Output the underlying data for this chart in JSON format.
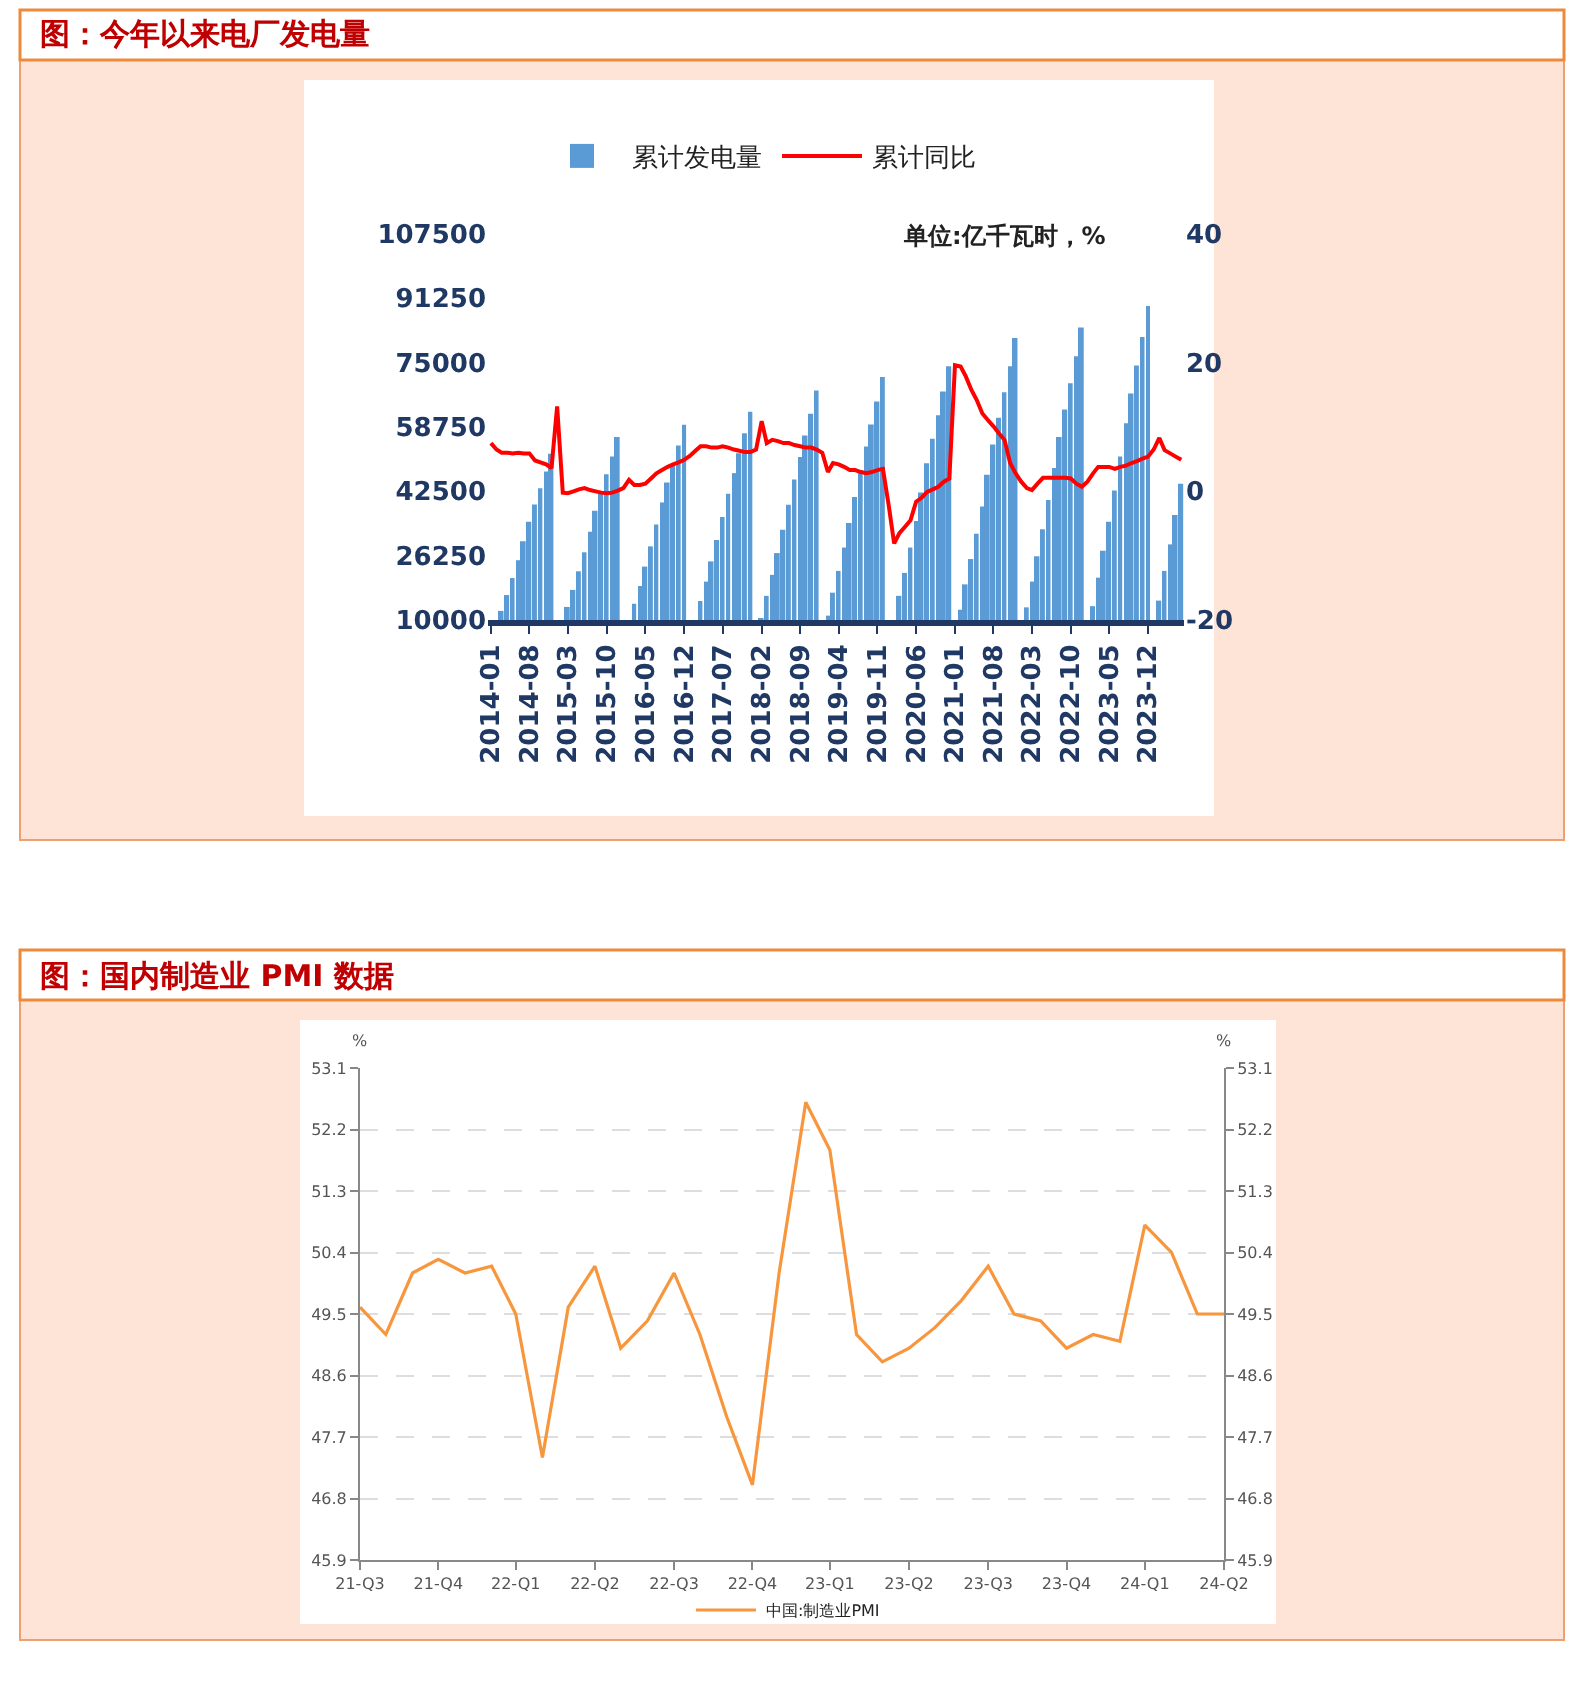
{
  "chart_data": [
    {
      "type": "bar",
      "title": "图：今年以来电厂发电量",
      "annotations": [
        "单位:亿千瓦时，%"
      ],
      "legend": "top",
      "x": [
        "2014-01",
        "2014-02",
        "2014-03",
        "2014-04",
        "2014-05",
        "2014-06",
        "2014-07",
        "2014-08",
        "2014-09",
        "2014-10",
        "2014-11",
        "2014-12",
        "2015-01",
        "2015-02",
        "2015-03",
        "2015-04",
        "2015-05",
        "2015-06",
        "2015-07",
        "2015-08",
        "2015-09",
        "2015-10",
        "2015-11",
        "2015-12",
        "2016-01",
        "2016-02",
        "2016-03",
        "2016-04",
        "2016-05",
        "2016-06",
        "2016-07",
        "2016-08",
        "2016-09",
        "2016-10",
        "2016-11",
        "2016-12",
        "2017-01",
        "2017-02",
        "2017-03",
        "2017-04",
        "2017-05",
        "2017-06",
        "2017-07",
        "2017-08",
        "2017-09",
        "2017-10",
        "2017-11",
        "2017-12",
        "2018-01",
        "2018-02",
        "2018-03",
        "2018-04",
        "2018-05",
        "2018-06",
        "2018-07",
        "2018-08",
        "2018-09",
        "2018-10",
        "2018-11",
        "2018-12",
        "2019-01",
        "2019-02",
        "2019-03",
        "2019-04",
        "2019-05",
        "2019-06",
        "2019-07",
        "2019-08",
        "2019-09",
        "2019-10",
        "2019-11",
        "2019-12",
        "2020-01",
        "2020-02",
        "2020-03",
        "2020-04",
        "2020-05",
        "2020-06",
        "2020-07",
        "2020-08",
        "2020-09",
        "2020-10",
        "2020-11",
        "2020-12",
        "2021-01",
        "2021-02",
        "2021-03",
        "2021-04",
        "2021-05",
        "2021-06",
        "2021-07",
        "2021-08",
        "2021-09",
        "2021-10",
        "2021-11",
        "2021-12",
        "2022-01",
        "2022-02",
        "2022-03",
        "2022-04",
        "2022-05",
        "2022-06",
        "2022-07",
        "2022-08",
        "2022-09",
        "2022-10",
        "2022-11",
        "2022-12",
        "2023-01",
        "2023-02",
        "2023-03",
        "2023-04",
        "2023-05",
        "2023-06",
        "2023-07",
        "2023-08",
        "2023-09",
        "2023-10",
        "2023-11",
        "2023-12",
        "2024-01",
        "2024-02",
        "2024-03",
        "2024-04",
        "2024-05",
        "2024-06"
      ],
      "xlim": [
        "2013-12-16",
        "2024-06-16"
      ],
      "xticks": [
        "2014-01",
        "2014-08",
        "2015-03",
        "2015-10",
        "2016-05",
        "2016-12",
        "2017-07",
        "2018-02",
        "2018-09",
        "2019-04",
        "2019-11",
        "2020-06",
        "2021-01",
        "2021-08",
        "2022-03",
        "2022-10",
        "2023-05",
        "2023-12"
      ],
      "ylim": [
        10000,
        107500
      ],
      "yticks": [
        10000,
        26250,
        42500,
        58750,
        75000,
        91250,
        107500
      ],
      "y2lim": [
        -20,
        40
      ],
      "y2ticks": [
        -20,
        0,
        20,
        40
      ],
      "series": [
        {
          "name": "累计发电量",
          "type": "bar",
          "color": "#5b9bd5",
          "values": [
            null,
            null,
            12300,
            16300,
            20600,
            25100,
            29900,
            34800,
            39200,
            43300,
            47500,
            52000,
            null,
            null,
            13300,
            17600,
            22300,
            27100,
            32300,
            37600,
            42300,
            46800,
            51300,
            56200,
            null,
            null,
            14100,
            18600,
            23500,
            28600,
            34100,
            39700,
            44700,
            49300,
            54100,
            59300,
            null,
            null,
            14800,
            19700,
            24800,
            30200,
            36000,
            41900,
            47100,
            52100,
            57200,
            62600,
            null,
            10500,
            16100,
            21400,
            26900,
            32800,
            39100,
            45500,
            51200,
            56600,
            62100,
            68000,
            null,
            11100,
            16900,
            22400,
            28300,
            34500,
            41100,
            47800,
            53800,
            59400,
            65200,
            71400,
            null,
            null,
            16100,
            21900,
            28300,
            35000,
            42200,
            49600,
            55800,
            61700,
            67700,
            74100,
            null,
            12600,
            19000,
            25400,
            31800,
            38700,
            46700,
            54300,
            61100,
            67500,
            74100,
            81200,
            null,
            13200,
            19700,
            26100,
            32900,
            40300,
            48400,
            56200,
            63200,
            69800,
            76600,
            83900,
            null,
            13500,
            20700,
            27500,
            34800,
            42700,
            51300,
            59700,
            67200,
            74300,
            81500,
            89300,
            null,
            14900,
            22400,
            29100,
            36500,
            44400
          ]
        },
        {
          "name": "累计同比",
          "type": "line",
          "axis": "y2",
          "color": "#ff0000",
          "values": [
            7.5,
            6.5,
            6.0,
            6.0,
            5.9,
            6.0,
            5.9,
            5.9,
            4.8,
            4.5,
            4.2,
            3.6,
            13.2,
            -0.2,
            -0.3,
            0,
            0.3,
            0.5,
            0.2,
            0,
            -0.2,
            -0.3,
            -0.2,
            0.1,
            0.5,
            1.8,
            1.0,
            1.0,
            1.2,
            2.0,
            2.8,
            3.3,
            3.8,
            4.2,
            4.5,
            4.9,
            5.5,
            6.3,
            7.0,
            7.0,
            6.8,
            6.8,
            7.0,
            6.8,
            6.5,
            6.3,
            6.1,
            6.1,
            6.5,
            10.9,
            7.5,
            8.0,
            7.8,
            7.5,
            7.5,
            7.2,
            7.0,
            6.8,
            6.8,
            6.5,
            6.0,
            3.0,
            4.4,
            4.2,
            3.8,
            3.3,
            3.3,
            3.0,
            2.8,
            3.0,
            3.3,
            3.5,
            -2.0,
            -8.1,
            -6.5,
            -5.5,
            -4.5,
            -1.6,
            -1.0,
            -0.1,
            0.3,
            0.7,
            1.5,
            2.0,
            19.6,
            19.4,
            17.9,
            15.8,
            14.2,
            12.1,
            11.1,
            10.1,
            9.0,
            8.0,
            4.4,
            2.8,
            1.5,
            0.5,
            0.2,
            1.2,
            2.1,
            2.1,
            2.1,
            2.1,
            2.1,
            2.0,
            1.2,
            0.7,
            1.5,
            2.8,
            3.8,
            3.8,
            3.8,
            3.5,
            3.8,
            4.0,
            4.4,
            4.7,
            5.1,
            5.4,
            6.5,
            8.3,
            6.4,
            5.9,
            5.4,
            4.9
          ]
        }
      ]
    },
    {
      "type": "line",
      "title": "图：国内制造业 PMI 数据",
      "ylabel": "%",
      "y2label": "%",
      "legend": "bottom",
      "grid": "y",
      "marker": "none",
      "x": [
        "2021-09",
        "2021-10",
        "2021-11",
        "2021-12",
        "2022-01",
        "2022-02",
        "2022-03",
        "2022-04",
        "2022-05",
        "2022-06",
        "2022-07",
        "2022-08",
        "2022-09",
        "2022-10",
        "2022-11",
        "2022-12",
        "2023-01",
        "2023-02",
        "2023-03",
        "2023-04",
        "2023-05",
        "2023-06",
        "2023-07",
        "2023-08",
        "2023-09",
        "2023-10",
        "2023-11",
        "2023-12",
        "2024-01",
        "2024-02",
        "2024-03",
        "2024-04",
        "2024-05",
        "2024-06"
      ],
      "xlim": [
        "2021-09",
        "2024-06"
      ],
      "xticks": [
        {
          "value": "2021-09",
          "label": "21-Q3"
        },
        {
          "value": "2021-12",
          "label": "21-Q4"
        },
        {
          "value": "2022-03",
          "label": "22-Q1"
        },
        {
          "value": "2022-06",
          "label": "22-Q2"
        },
        {
          "value": "2022-09",
          "label": "22-Q3"
        },
        {
          "value": "2022-12",
          "label": "22-Q4"
        },
        {
          "value": "2023-03",
          "label": "23-Q1"
        },
        {
          "value": "2023-06",
          "label": "23-Q2"
        },
        {
          "value": "2023-09",
          "label": "23-Q3"
        },
        {
          "value": "2023-12",
          "label": "23-Q4"
        },
        {
          "value": "2024-03",
          "label": "24-Q1"
        },
        {
          "value": "2024-06",
          "label": "24-Q2"
        }
      ],
      "ylim": [
        45.9,
        53.1
      ],
      "yticks": [
        45.9,
        46.8,
        47.7,
        48.6,
        49.5,
        50.4,
        51.3,
        52.2,
        53.1
      ],
      "y2lim": [
        45.9,
        53.1
      ],
      "y2ticks": [
        45.9,
        46.8,
        47.7,
        48.6,
        49.5,
        50.4,
        51.3,
        52.2,
        53.1
      ],
      "series": [
        {
          "name": "中国:制造业PMI",
          "color": "#f7963c",
          "values": [
            49.6,
            49.2,
            50.1,
            50.3,
            50.1,
            50.2,
            49.5,
            47.4,
            49.6,
            50.2,
            49.0,
            49.4,
            50.1,
            49.2,
            48.0,
            47.0,
            50.1,
            52.6,
            51.9,
            49.2,
            48.8,
            49.0,
            49.3,
            49.7,
            50.2,
            49.5,
            49.4,
            49.0,
            49.2,
            49.1,
            50.8,
            50.4,
            49.5,
            49.5
          ]
        }
      ]
    }
  ]
}
